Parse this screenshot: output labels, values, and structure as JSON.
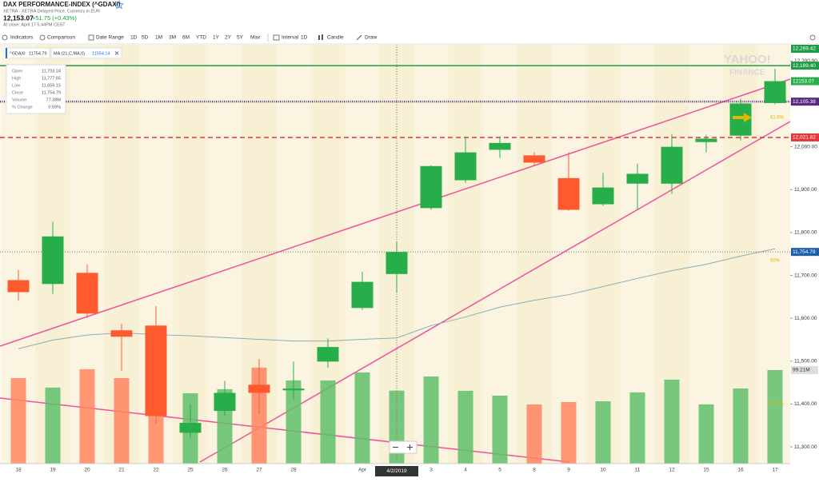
{
  "header": {
    "title": "DAX PERFORMANCE-INDEX (^GDAXI)",
    "subtitle": "XETRA - XETRA Delayed Price. Currency in EUR",
    "price": "12,153.07",
    "change": "+51.75 (+0.43%)",
    "close_note": "At close: April 17 5:44PM CEST"
  },
  "toolbar": {
    "indicators": "Indicators",
    "comparison": "Comparison",
    "date_range": "Date Range",
    "ranges": [
      "1D",
      "5D",
      "1M",
      "3M",
      "6M",
      "YTD",
      "1Y",
      "2Y",
      "5Y",
      "Max"
    ],
    "interval": "Interval",
    "interval_value": "1D",
    "chart_type": "Candle",
    "draw": "Draw"
  },
  "legend": {
    "symbol": "^GDAXI"
  },
  "tooltip": {
    "rows": [
      [
        "Open",
        "11,703.24"
      ],
      [
        "High",
        "11,777.65"
      ],
      [
        "Low",
        "11,659.15"
      ],
      [
        "Close",
        "11,754.79"
      ],
      [
        "Volume",
        "77.38M"
      ],
      [
        "% Change",
        "0.59%"
      ]
    ]
  },
  "watermark": [
    "YAHOO!",
    "FINANCE"
  ],
  "chart_data": {
    "type": "candlestick",
    "categories": [
      "18",
      "19",
      "20",
      "21",
      "22",
      "25",
      "26",
      "27",
      "28",
      null,
      "Apr",
      "4/2/2019",
      "3",
      "4",
      "5",
      "8",
      "9",
      "10",
      "11",
      "12",
      "15",
      "16",
      "17"
    ],
    "open": [
      11689,
      11680,
      11706,
      11572,
      11583,
      11333,
      11384,
      11445,
      11432,
      11499,
      11624,
      11703.24,
      11857,
      11922,
      11993,
      11980,
      11927,
      11866,
      11914,
      11914,
      12011,
      12026,
      12102
    ],
    "high": [
      11713,
      11825,
      11726,
      11587,
      11628,
      11400,
      11454,
      11505,
      11499,
      11553,
      11708,
      11777.65,
      11957,
      12024,
      12024,
      11987,
      11987,
      11939,
      11961,
      12030,
      12028,
      12112,
      12182
    ],
    "low": [
      11641,
      11657,
      11601,
      11477,
      11354,
      11320,
      11372,
      11376,
      11410,
      11484,
      11620,
      11659.15,
      11853,
      11916,
      11974,
      11955,
      11851,
      11862,
      11853,
      11890,
      11987,
      12015,
      12099
    ],
    "close": [
      11661,
      11791,
      11611,
      11557,
      11372,
      11356,
      11426,
      11426,
      11436,
      11533,
      11685,
      11754.79,
      11955,
      11987,
      12009,
      11963,
      11853,
      11905,
      11937,
      12000,
      12019,
      12101,
      12153.07
    ],
    "up_color": "#27ae4a",
    "down_color": "#ff5a2e",
    "volume": {
      "values": [
        90.7,
        80.6,
        100.1,
        90.7,
        110.2,
        74.6,
        78.9,
        101.8,
        88.2,
        88.2,
        96.7,
        77.38,
        92.4,
        77.2,
        72.1,
        62.8,
        65.3,
        66.1,
        75.5,
        89.0,
        62.8,
        79.7,
        99.21
      ],
      "value_labels": [
        null,
        null,
        null,
        null,
        null,
        null,
        null,
        null,
        null,
        null,
        null,
        null,
        null,
        null,
        null,
        null,
        null,
        null,
        null,
        null,
        null,
        null,
        "99.21M"
      ],
      "up_color": "#5fc06b",
      "down_color": "#ff8560"
    },
    "ma": {
      "name": "MA (21,C,MA,0)",
      "color": "#8aaeb5",
      "values": [
        11529,
        11549,
        11561,
        11566,
        11562,
        11559,
        11555,
        11551,
        11547,
        11547,
        11551,
        11554.14,
        11583,
        11603,
        11626,
        11642,
        11655,
        11674,
        11693,
        11711,
        11726,
        11745,
        11762
      ]
    },
    "ylim": [
      11261,
      12238
    ],
    "yticks": [
      {
        "value": 11300,
        "label": "11,300.00"
      },
      {
        "value": 11400,
        "label": "11,400.00"
      },
      {
        "value": 11500,
        "label": "11,500.00"
      },
      {
        "value": 11600,
        "label": "11,600.00"
      },
      {
        "value": 11700,
        "label": "11,700.00"
      },
      {
        "value": 11800,
        "label": "11,800.00"
      },
      {
        "value": 11900,
        "label": "11,900.00"
      },
      {
        "value": 12000,
        "label": "12,000.00"
      },
      {
        "value": 12100,
        "label": "12,100.00"
      },
      {
        "value": 12200,
        "label": "12,200.00"
      }
    ],
    "price_lines": [
      {
        "value": 12269.42,
        "label": "12,269.42",
        "color": "#1f9d45",
        "style": "tag"
      },
      {
        "value": 12189.4,
        "label": "12,189.40",
        "color": "#1f9d45",
        "style": "solid"
      },
      {
        "value": 12105.38,
        "label": "12,105.38",
        "color": "#5a2a82",
        "style": "dotted"
      },
      {
        "value": 12021.82,
        "label": "12,021.82",
        "color": "#e8343a",
        "style": "dashed"
      }
    ],
    "crosshair": {
      "index": 11,
      "y_value": 11754.79,
      "y_label": "11,754.79"
    },
    "fib_labels": [
      "61.8%",
      "50%",
      "38.2%"
    ]
  }
}
